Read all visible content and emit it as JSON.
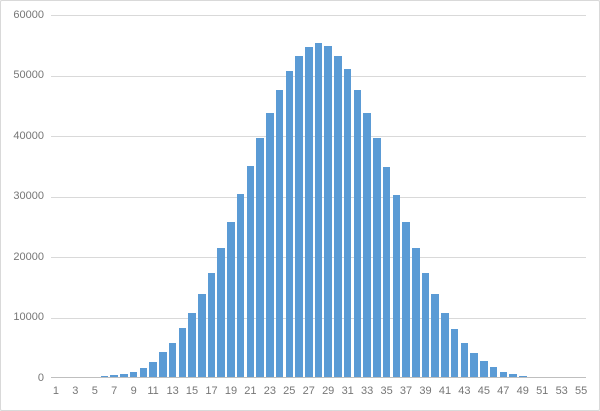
{
  "chart": {
    "title": "",
    "colors": {
      "bar": "#5b9bd5",
      "gridline": "#d9d9d9",
      "axis_line": "#bfbfbf",
      "tick_label": "#767676",
      "background": "#ffffff",
      "border": "#d9d9d9"
    }
  },
  "chart_data": {
    "type": "bar",
    "title": "",
    "xlabel": "",
    "ylabel": "",
    "legend": "none",
    "grid": "horizontal",
    "ylim": [
      0,
      60000
    ],
    "y_ticks": [
      0,
      10000,
      20000,
      30000,
      40000,
      50000,
      60000
    ],
    "y_tick_labels": [
      "0",
      "10000",
      "20000",
      "30000",
      "40000",
      "50000",
      "60000"
    ],
    "x_tick_labels": [
      "1",
      "3",
      "5",
      "7",
      "9",
      "11",
      "13",
      "15",
      "17",
      "19",
      "21",
      "23",
      "25",
      "27",
      "29",
      "31",
      "33",
      "35",
      "37",
      "39",
      "41",
      "43",
      "45",
      "47",
      "49",
      "51",
      "53",
      "55"
    ],
    "categories": [
      1,
      2,
      3,
      4,
      5,
      6,
      7,
      8,
      9,
      10,
      11,
      12,
      13,
      14,
      15,
      16,
      17,
      18,
      19,
      20,
      21,
      22,
      23,
      24,
      25,
      26,
      27,
      28,
      29,
      30,
      31,
      32,
      33,
      34,
      35,
      36,
      37,
      38,
      39,
      40,
      41,
      42,
      43,
      44,
      45,
      46,
      47,
      48,
      49,
      50,
      51,
      52,
      53,
      54,
      55
    ],
    "values": [
      0,
      0,
      0,
      0,
      0,
      210,
      390,
      560,
      880,
      1450,
      2480,
      4060,
      5710,
      8120,
      10590,
      13760,
      17280,
      21290,
      25660,
      30240,
      34880,
      39470,
      43680,
      47420,
      50660,
      53130,
      54620,
      55190,
      54640,
      53100,
      50870,
      47390,
      43710,
      39440,
      34790,
      30110,
      25690,
      21280,
      17230,
      13690,
      10640,
      7960,
      5680,
      4010,
      2640,
      1590,
      870,
      440,
      170,
      80,
      0,
      0,
      0,
      0,
      0
    ]
  }
}
